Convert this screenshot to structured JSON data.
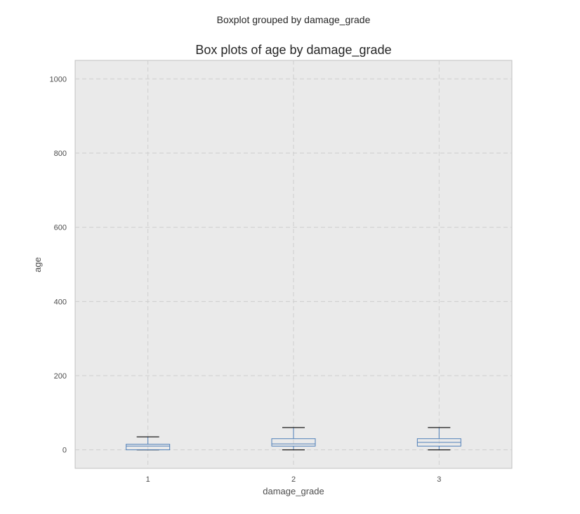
{
  "chart_data": {
    "type": "box",
    "suptitle": "Boxplot grouped by damage_grade",
    "title": "Box plots of age by damage_grade",
    "xlabel": "damage_grade",
    "ylabel": "age",
    "categories": [
      "1",
      "2",
      "3"
    ],
    "yticks": [
      0,
      200,
      400,
      600,
      800,
      1000
    ],
    "ylim": [
      -50,
      1050
    ],
    "grid": true,
    "boxes": [
      {
        "category": "1",
        "whisker_low": 0,
        "q1": 0,
        "median": 10,
        "q3": 15,
        "whisker_high": 35
      },
      {
        "category": "2",
        "whisker_low": 0,
        "q1": 10,
        "median": 16,
        "q3": 30,
        "whisker_high": 60
      },
      {
        "category": "3",
        "whisker_low": 0,
        "q1": 10,
        "median": 20,
        "q3": 30,
        "whisker_high": 60
      }
    ],
    "colors": {
      "box": "#4f7fb8",
      "whisker_cap": "#1a1a1a",
      "plot_bg": "#eaeaea",
      "grid": "#cfcfcf",
      "frame": "#c0c0c0"
    }
  }
}
